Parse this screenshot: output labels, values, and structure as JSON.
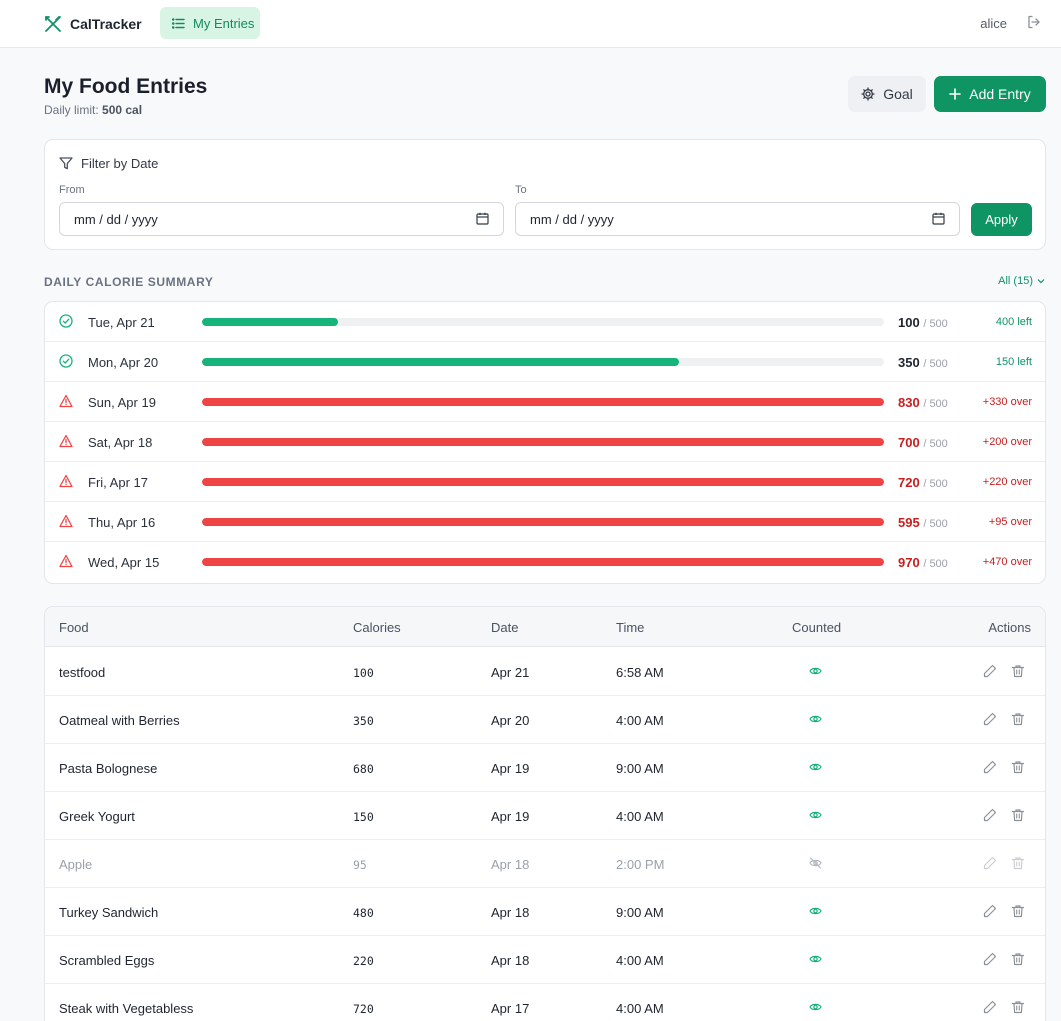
{
  "header": {
    "brand": "CalTracker",
    "nav_label": "My Entries",
    "username": "alice"
  },
  "page": {
    "title": "My Food Entries",
    "limit_label": "Daily limit:",
    "limit_value": "500 cal",
    "goal_label": "Goal",
    "add_label": "Add Entry"
  },
  "filter": {
    "title": "Filter by Date",
    "from_label": "From",
    "to_label": "To",
    "from_placeholder": "mm / dd / yyyy",
    "to_placeholder": "mm / dd / yyyy",
    "apply_label": "Apply"
  },
  "summary": {
    "title": "DAILY CALORIE SUMMARY",
    "filter_label": "All (15)",
    "limit": 500,
    "rows": [
      {
        "day": "Tue, Apr 21",
        "consumed": "100",
        "limit": "/ 500",
        "remaining": "400 left",
        "status": "ok",
        "fraction": 0.2
      },
      {
        "day": "Mon, Apr 20",
        "consumed": "350",
        "limit": "/ 500",
        "remaining": "150 left",
        "status": "ok",
        "fraction": 0.7
      },
      {
        "day": "Sun, Apr 19",
        "consumed": "830",
        "limit": "/ 500",
        "remaining": "+330 over",
        "status": "over",
        "fraction": 1
      },
      {
        "day": "Sat, Apr 18",
        "consumed": "700",
        "limit": "/ 500",
        "remaining": "+200 over",
        "status": "over",
        "fraction": 1
      },
      {
        "day": "Fri, Apr 17",
        "consumed": "720",
        "limit": "/ 500",
        "remaining": "+220 over",
        "status": "over",
        "fraction": 1
      },
      {
        "day": "Thu, Apr 16",
        "consumed": "595",
        "limit": "/ 500",
        "remaining": "+95 over",
        "status": "over",
        "fraction": 1
      },
      {
        "day": "Wed, Apr 15",
        "consumed": "970",
        "limit": "/ 500",
        "remaining": "+470 over",
        "status": "over",
        "fraction": 1
      }
    ]
  },
  "table": {
    "columns": {
      "food": "Food",
      "calories": "Calories",
      "date": "Date",
      "time": "Time",
      "counted": "Counted",
      "actions": "Actions"
    },
    "rows": [
      {
        "food": "testfood",
        "calories": "100",
        "date": "Apr 21",
        "time": "6:58 AM",
        "counted": true
      },
      {
        "food": "Oatmeal with Berries",
        "calories": "350",
        "date": "Apr 20",
        "time": "4:00 AM",
        "counted": true
      },
      {
        "food": "Pasta Bolognese",
        "calories": "680",
        "date": "Apr 19",
        "time": "9:00 AM",
        "counted": true
      },
      {
        "food": "Greek Yogurt",
        "calories": "150",
        "date": "Apr 19",
        "time": "4:00 AM",
        "counted": true
      },
      {
        "food": "Apple",
        "calories": "95",
        "date": "Apr 18",
        "time": "2:00 PM",
        "counted": false
      },
      {
        "food": "Turkey Sandwich",
        "calories": "480",
        "date": "Apr 18",
        "time": "9:00 AM",
        "counted": true
      },
      {
        "food": "Scrambled Eggs",
        "calories": "220",
        "date": "Apr 18",
        "time": "4:00 AM",
        "counted": true
      },
      {
        "food": "Steak with Vegetabless",
        "calories": "720",
        "date": "Apr 17",
        "time": "4:00 AM",
        "counted": true
      }
    ]
  },
  "colors": {
    "brand": "#0f9463",
    "ok": "#16b37a",
    "over": "#ef4444",
    "over_text": "#c81e1e"
  },
  "icons": {
    "brand": "fork-knife-icon",
    "nav": "list-icon",
    "logout": "logout-icon",
    "goal": "gear-icon",
    "add": "plus-icon",
    "filter": "funnel-icon",
    "calendar": "calendar-icon",
    "ok": "check-circle-icon",
    "over": "warning-triangle-icon",
    "counted": "eye-icon",
    "not_counted": "eye-off-icon",
    "edit": "pencil-icon",
    "delete": "trash-icon"
  }
}
